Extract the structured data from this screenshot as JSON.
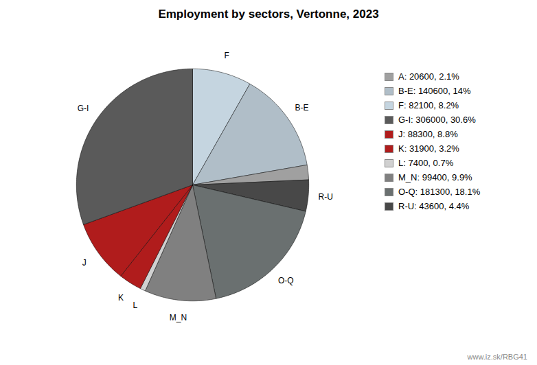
{
  "chart_data": {
    "type": "pie",
    "title": "Employment by sectors, Vertonne, 2023",
    "categories": [
      "F",
      "B-E",
      null,
      "R-U",
      "O-Q",
      "M_N",
      "L",
      "K",
      "J",
      "G-I"
    ],
    "values": [
      82100,
      140600,
      20600,
      43600,
      181300,
      99400,
      7400,
      31900,
      88300,
      306000
    ],
    "colors": [
      "#c5d5e0",
      "#b0bec8",
      "#a0a0a0",
      "#484848",
      "#6a7070",
      "#808080",
      "#d0d0d0",
      "#b01c1c",
      "#b01c1c",
      "#5a5a5a"
    ],
    "legend": "right",
    "legend_entries": [
      {
        "label": "A: 20600, 2.1%",
        "color": "#a0a0a0"
      },
      {
        "label": "B-E: 140600, 14%",
        "color": "#b0bec8"
      },
      {
        "label": "F: 82100, 8.2%",
        "color": "#c5d5e0"
      },
      {
        "label": "G-I: 306000, 30.6%",
        "color": "#5a5a5a"
      },
      {
        "label": "J: 88300, 8.8%",
        "color": "#b01c1c"
      },
      {
        "label": "K: 31900, 3.2%",
        "color": "#b01c1c"
      },
      {
        "label": "L: 7400, 0.7%",
        "color": "#d0d0d0"
      },
      {
        "label": "M_N: 99400, 9.9%",
        "color": "#808080"
      },
      {
        "label": "O-Q: 181300, 18.1%",
        "color": "#6a7070"
      },
      {
        "label": "R-U: 43600, 4.4%",
        "color": "#484848"
      }
    ],
    "annotation": "www.iz.sk/RBG41"
  }
}
